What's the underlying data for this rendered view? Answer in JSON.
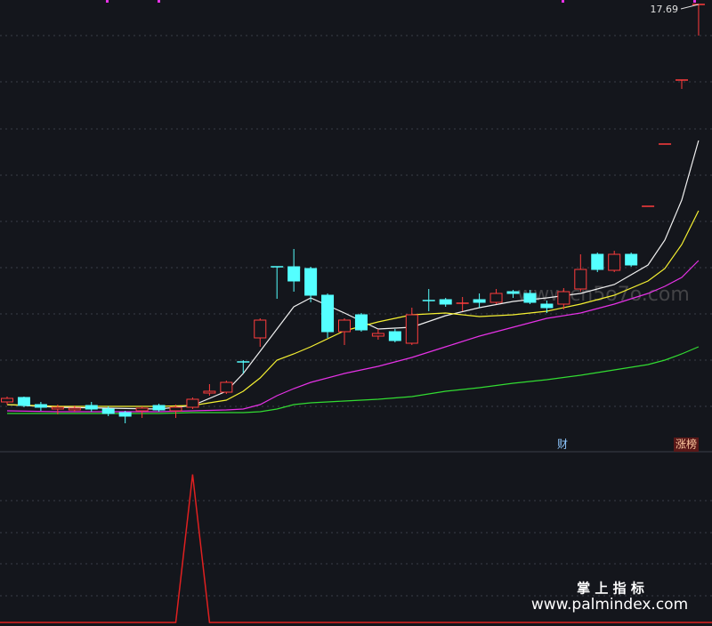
{
  "chart_data": [
    {
      "type": "candlestick",
      "categories": [
        null,
        null,
        null,
        null,
        null,
        null,
        null,
        null,
        null,
        null,
        null,
        null,
        null,
        null,
        null,
        null,
        null,
        null,
        null,
        null,
        null,
        null,
        null,
        null,
        null,
        null,
        null,
        null,
        null,
        null,
        null,
        null,
        null,
        null,
        null,
        null,
        null,
        null,
        null,
        null,
        null,
        null
      ],
      "open": [
        8.75,
        8.85,
        8.69,
        8.59,
        8.57,
        8.67,
        8.59,
        8.51,
        8.55,
        8.67,
        8.55,
        8.63,
        8.95,
        8.97,
        9.65,
        10.19,
        11.79,
        11.79,
        11.75,
        11.15,
        10.33,
        10.71,
        10.23,
        10.33,
        10.07,
        11.03,
        11.05,
        10.95,
        11.05,
        10.99,
        11.23,
        11.19,
        10.95,
        10.95,
        11.29,
        12.07,
        11.71,
        12.07,
        13.15,
        14.55,
        15.99,
        17.69
      ],
      "close": [
        8.83,
        8.67,
        8.63,
        8.63,
        8.61,
        8.59,
        8.49,
        8.43,
        8.61,
        8.57,
        8.63,
        8.81,
        8.99,
        9.19,
        9.63,
        10.59,
        11.77,
        11.47,
        11.15,
        10.33,
        10.59,
        10.37,
        10.29,
        10.13,
        10.71,
        11.01,
        10.95,
        10.97,
        10.99,
        11.19,
        11.19,
        10.99,
        10.87,
        11.23,
        11.73,
        11.73,
        12.07,
        11.83,
        13.15,
        14.55,
        15.99,
        17.69
      ],
      "high": [
        8.87,
        8.87,
        8.75,
        8.69,
        8.67,
        8.75,
        8.65,
        8.55,
        8.65,
        8.71,
        8.69,
        8.85,
        9.15,
        9.23,
        9.69,
        10.63,
        11.79,
        12.19,
        11.79,
        11.19,
        10.63,
        10.75,
        10.39,
        10.39,
        10.87,
        11.29,
        11.09,
        11.11,
        11.19,
        11.29,
        11.27,
        11.27,
        11.03,
        11.31,
        12.07,
        12.11,
        12.15,
        12.11,
        13.15,
        14.55,
        15.99,
        17.69
      ],
      "low": [
        8.69,
        8.63,
        8.55,
        8.47,
        8.53,
        8.53,
        8.43,
        8.27,
        8.39,
        8.53,
        8.39,
        8.59,
        8.89,
        8.93,
        9.39,
        9.99,
        11.07,
        11.23,
        10.99,
        10.19,
        10.03,
        10.33,
        10.15,
        10.09,
        10.03,
        10.79,
        10.89,
        10.79,
        10.87,
        10.95,
        11.09,
        10.95,
        10.75,
        10.83,
        11.23,
        11.67,
        11.67,
        11.79,
        13.15,
        14.55,
        15.79,
        16.99
      ],
      "up_color": "#ff3c3c",
      "down_color": "#54ffff",
      "ylim": [
        7.69,
        17.79
      ],
      "ma_x": [
        0,
        3,
        6,
        9,
        11,
        13,
        14,
        15,
        16,
        17,
        18,
        20,
        22,
        24,
        26,
        28,
        30,
        32,
        34,
        36,
        38,
        39,
        40,
        41
      ],
      "lines": [
        {
          "color": "#f0f0f0",
          "values": [
            8.69,
            8.63,
            8.61,
            8.59,
            8.67,
            8.99,
            9.39,
            9.89,
            10.39,
            10.89,
            11.09,
            10.75,
            10.39,
            10.43,
            10.69,
            10.87,
            11.01,
            11.09,
            11.19,
            11.39,
            11.83,
            12.39,
            13.29,
            14.63
          ]
        },
        {
          "color": "#f5f032",
          "values": [
            8.69,
            8.65,
            8.65,
            8.65,
            8.67,
            8.79,
            8.99,
            9.29,
            9.69,
            9.83,
            9.99,
            10.35,
            10.55,
            10.71,
            10.75,
            10.67,
            10.71,
            10.79,
            10.95,
            11.15,
            11.47,
            11.75,
            12.29,
            13.05
          ]
        },
        {
          "color": "#e632e6",
          "values": [
            8.55,
            8.53,
            8.53,
            8.53,
            8.55,
            8.57,
            8.59,
            8.69,
            8.89,
            9.05,
            9.19,
            9.39,
            9.55,
            9.75,
            9.99,
            10.23,
            10.43,
            10.63,
            10.75,
            10.95,
            11.19,
            11.35,
            11.55,
            11.93
          ]
        },
        {
          "color": "#32dc32",
          "values": [
            8.49,
            8.49,
            8.49,
            8.49,
            8.51,
            8.51,
            8.51,
            8.53,
            8.59,
            8.69,
            8.73,
            8.77,
            8.81,
            8.87,
            8.99,
            9.07,
            9.17,
            9.25,
            9.35,
            9.47,
            9.59,
            9.69,
            9.83,
            9.99
          ]
        }
      ],
      "annotations": [
        "财",
        "涨榜"
      ],
      "watermark": "www.cn5o7o.com"
    },
    {
      "type": "line",
      "values": [
        0,
        0,
        0,
        0,
        0,
        0,
        0,
        0,
        0,
        0,
        0,
        1,
        0,
        0,
        0,
        0,
        0,
        0,
        0,
        0,
        0,
        0,
        0,
        0,
        0,
        0,
        0,
        0,
        0,
        0,
        0,
        0,
        0,
        0,
        0,
        0,
        0,
        0,
        0,
        0,
        0,
        0
      ],
      "color": "#e02020",
      "ylim": [
        0,
        1.13
      ],
      "caption": "掌 上 指 标",
      "source": "www.palmindex.com"
    }
  ]
}
